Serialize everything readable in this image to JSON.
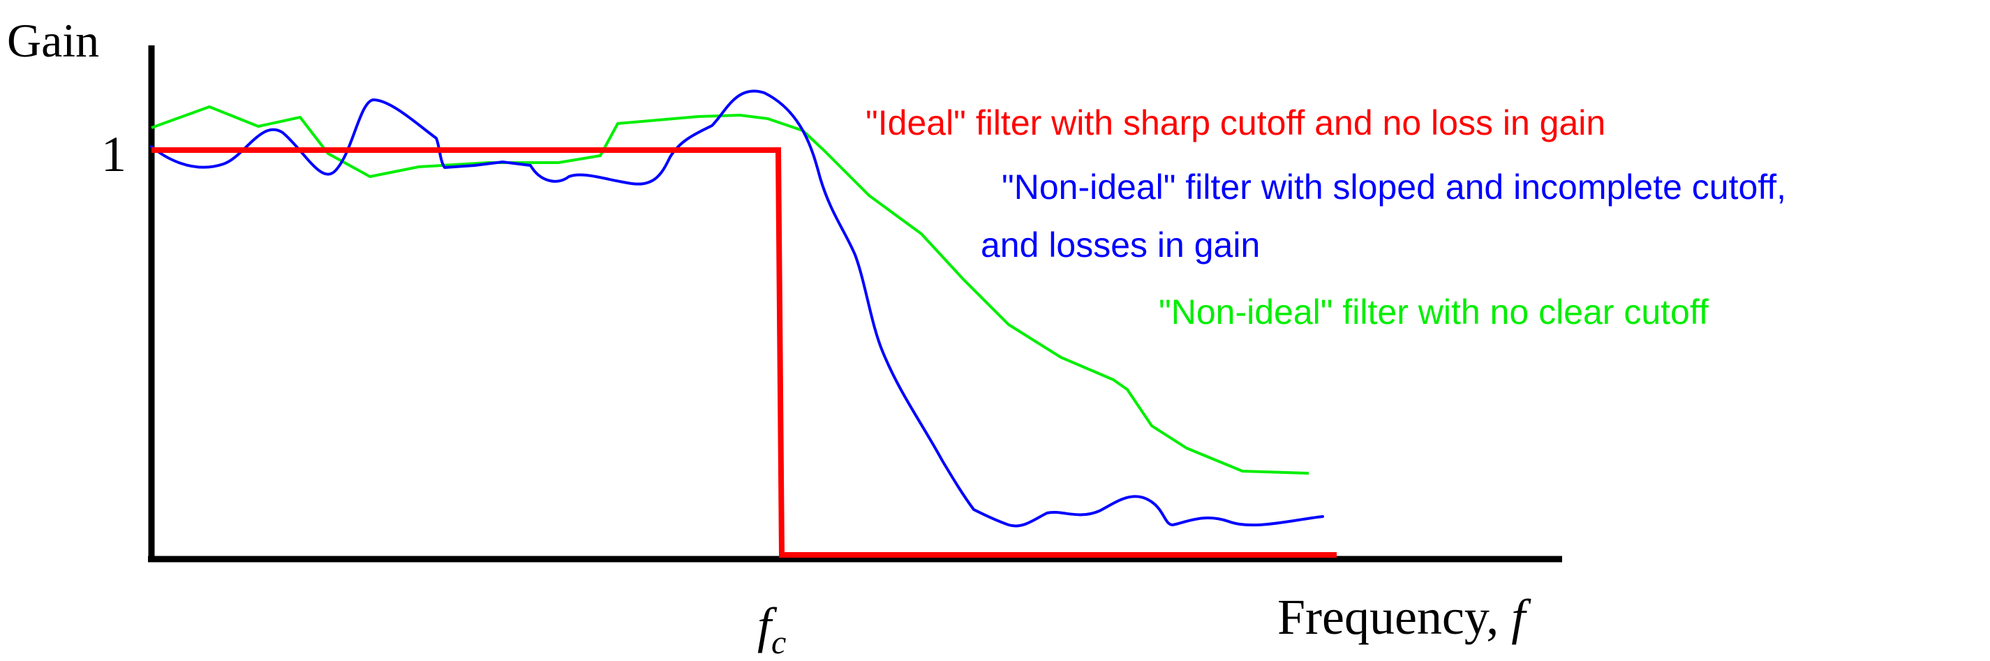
{
  "axes": {
    "y_label": "Gain",
    "y_tick": "1",
    "x_label": "Frequency, ",
    "x_label_var": "f",
    "cutoff_label": "f",
    "cutoff_label_sub": "c"
  },
  "annotations": {
    "ideal": "\"Ideal\" filter with sharp cutoff and no loss in gain",
    "nonideal_blue_line1": "\"Non-ideal\" filter with sloped and incomplete cutoff,",
    "nonideal_blue_line2": "and losses in gain",
    "nonideal_green": "\"Non-ideal\" filter with no clear cutoff"
  },
  "colors": {
    "ideal": "#ff0000",
    "sloped": "#0000ff",
    "no_cutoff": "#00ee00",
    "axes": "#000000"
  }
}
